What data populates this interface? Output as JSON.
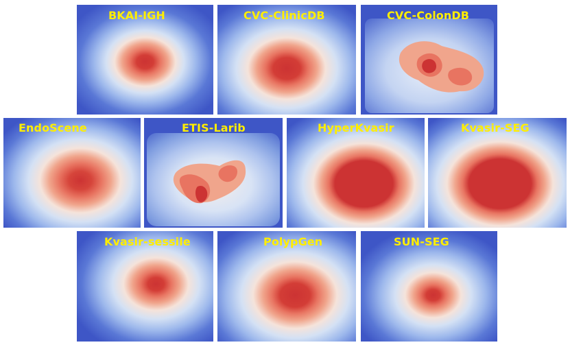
{
  "colors": {
    "label": "#ffee00",
    "background": "#3e56c6",
    "low": "#5a78d6",
    "mid_low": "#9db8ec",
    "mid": "#e8eef8",
    "mid_high": "#f0a58c",
    "high": "#e87461",
    "peak": "#cc3333"
  },
  "panels": [
    {
      "id": "bkai",
      "label": "BKAI-IGH"
    },
    {
      "id": "cvcdb",
      "label": "CVC-ClinicDB"
    },
    {
      "id": "colon",
      "label": "CVC-ColonDB"
    },
    {
      "id": "endo",
      "label": "EndoScene"
    },
    {
      "id": "etis",
      "label": "ETIS-Larib"
    },
    {
      "id": "hyper",
      "label": "HyperKvasir"
    },
    {
      "id": "kseg",
      "label": "Kvasir-SEG"
    },
    {
      "id": "ksess",
      "label": "Kvasir-sessile"
    },
    {
      "id": "polyp",
      "label": "PolypGen"
    },
    {
      "id": "sun",
      "label": "SUN-SEG"
    }
  ]
}
